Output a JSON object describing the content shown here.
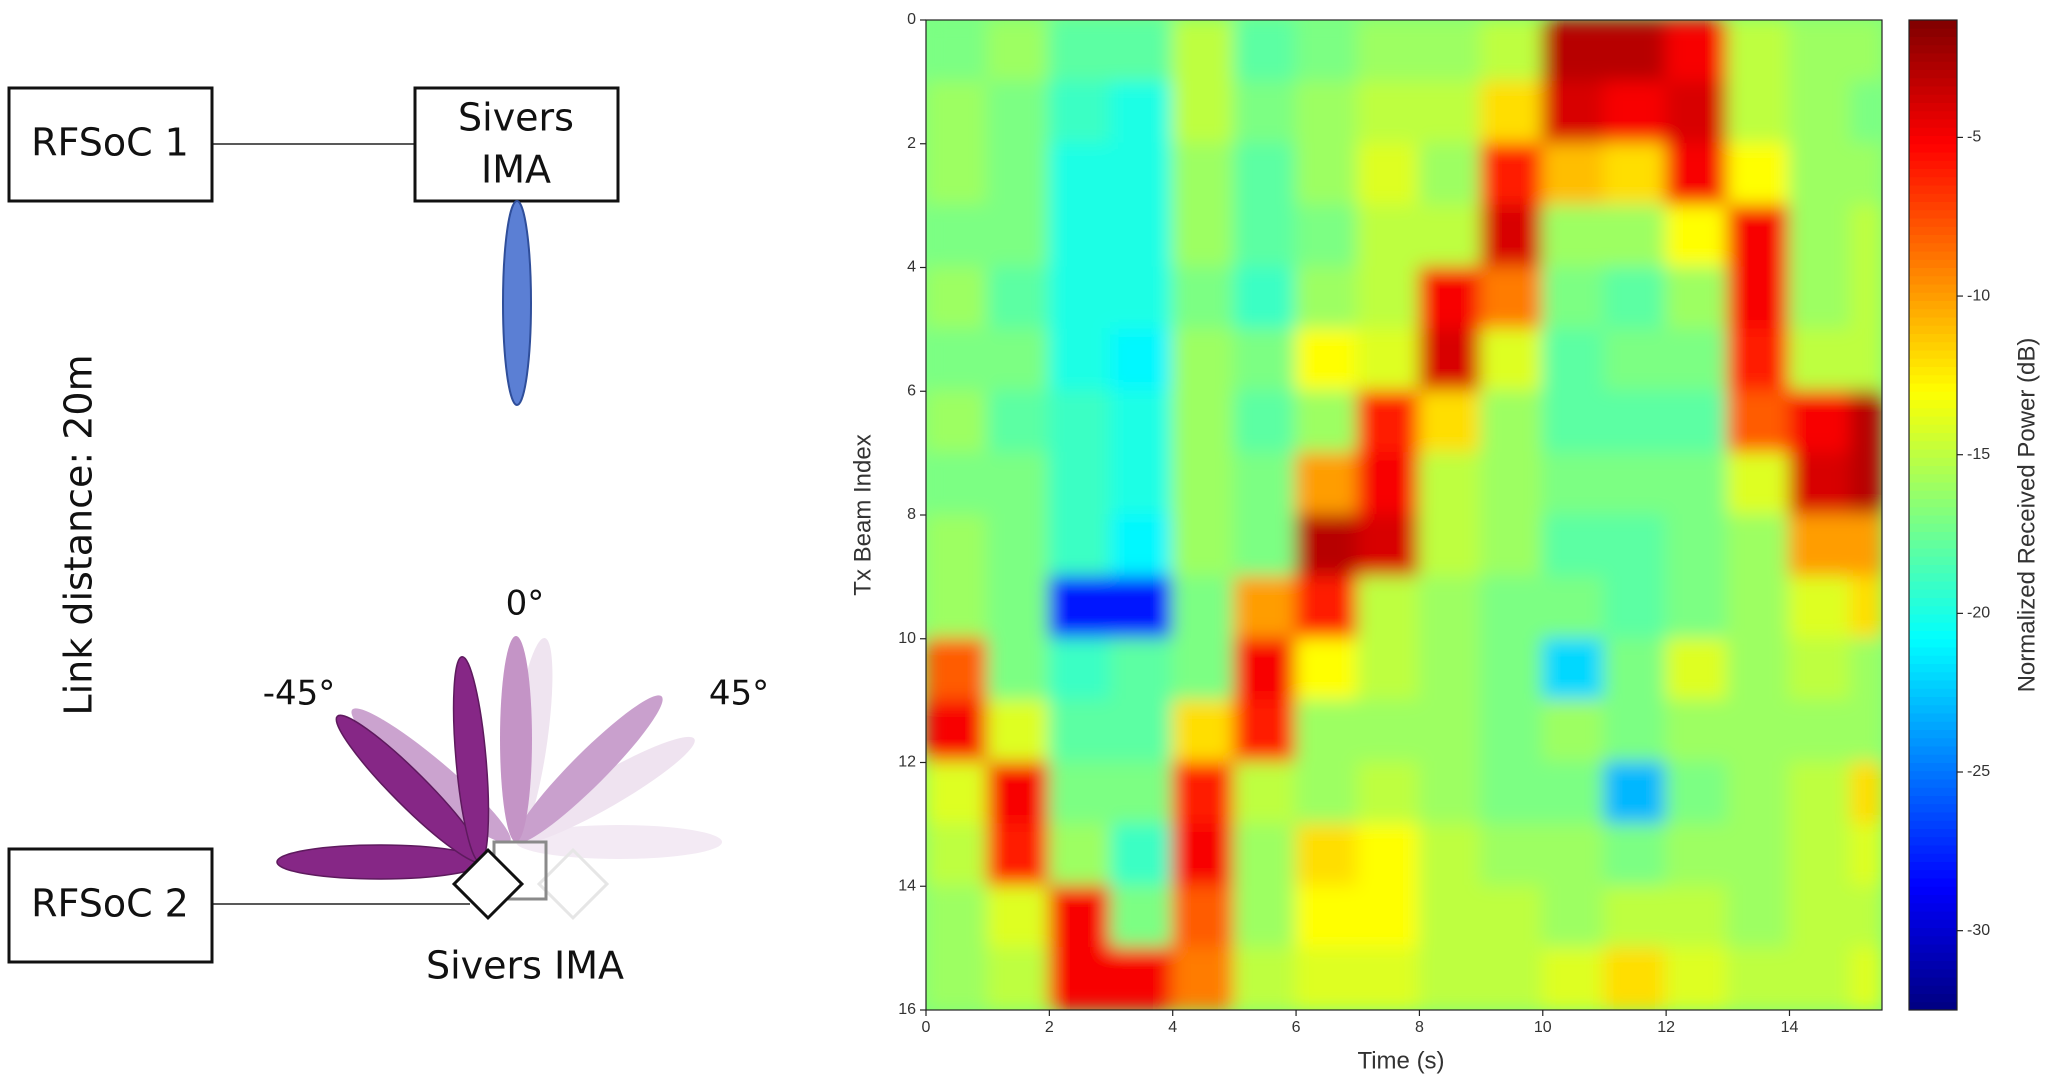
{
  "diagram": {
    "rfsoc1": "RFSoC 1",
    "sivers_top": [
      "Sivers",
      "IMA"
    ],
    "link_distance": "Link distance: 20m",
    "rfsoc2": "RFSoC 2",
    "sivers_bottom": "Sivers IMA",
    "angle_left": "-45°",
    "angle_center": "0°",
    "angle_right": "45°"
  },
  "chart_data": {
    "type": "heatmap",
    "x_label": "Time (s)",
    "y_label": "Tx Beam Index",
    "colorbar_label": "Normalized Received Power (dB)",
    "colormap": "jet",
    "x": [
      0,
      1,
      2,
      3,
      4,
      5,
      6,
      7,
      8,
      9,
      10,
      11,
      12,
      13,
      14,
      15
    ],
    "y": [
      0,
      1,
      2,
      3,
      4,
      5,
      6,
      7,
      8,
      9,
      10,
      11,
      12,
      13,
      14,
      15
    ],
    "xlim": [
      0,
      15.5
    ],
    "ylim": [
      16,
      0
    ],
    "zlim": [
      -32.5,
      -1.3
    ],
    "xticks": [
      0,
      2,
      4,
      6,
      8,
      10,
      12,
      14
    ],
    "yticks": [
      0,
      2,
      4,
      6,
      8,
      10,
      12,
      14,
      16
    ],
    "zticks": [
      -30,
      -25,
      -20,
      -15,
      -10,
      -5
    ],
    "z": [
      [
        -17,
        -16,
        -18,
        -18,
        -15,
        -18,
        -17,
        -16,
        -16,
        -15,
        -3,
        -3,
        -5,
        -15,
        -16,
        -16
      ],
      [
        -16,
        -17,
        -19,
        -20,
        -15,
        -17,
        -16,
        -15,
        -15,
        -12,
        -4,
        -5,
        -4,
        -15,
        -16,
        -17
      ],
      [
        -16,
        -17,
        -20,
        -20,
        -16,
        -18,
        -16,
        -14,
        -16,
        -6,
        -11,
        -12,
        -5,
        -13,
        -16,
        -16
      ],
      [
        -17,
        -17,
        -20,
        -20,
        -16,
        -18,
        -17,
        -15,
        -15,
        -4,
        -16,
        -16,
        -13,
        -5,
        -16,
        -15
      ],
      [
        -16,
        -18,
        -20,
        -20,
        -17,
        -19,
        -16,
        -15,
        -5,
        -9,
        -17,
        -18,
        -16,
        -5,
        -16,
        -15
      ],
      [
        -17,
        -17,
        -20,
        -21,
        -16,
        -17,
        -13,
        -14,
        -4,
        -14,
        -18,
        -17,
        -17,
        -6,
        -15,
        -15
      ],
      [
        -16,
        -18,
        -19,
        -20,
        -16,
        -18,
        -16,
        -6,
        -12,
        -16,
        -18,
        -18,
        -18,
        -8,
        -5,
        -3
      ],
      [
        -17,
        -17,
        -19,
        -20,
        -16,
        -17,
        -10,
        -5,
        -15,
        -16,
        -17,
        -17,
        -17,
        -14,
        -4,
        -3
      ],
      [
        -16,
        -17,
        -19,
        -21,
        -16,
        -17,
        -3,
        -4,
        -15,
        -16,
        -18,
        -18,
        -17,
        -16,
        -10,
        -10
      ],
      [
        -16,
        -17,
        -28,
        -28,
        -17,
        -10,
        -6,
        -15,
        -16,
        -17,
        -17,
        -18,
        -17,
        -16,
        -14,
        -12
      ],
      [
        -8,
        -17,
        -19,
        -18,
        -17,
        -5,
        -13,
        -15,
        -16,
        -17,
        -22,
        -17,
        -14,
        -16,
        -15,
        -16
      ],
      [
        -5,
        -14,
        -18,
        -18,
        -12,
        -6,
        -16,
        -16,
        -16,
        -17,
        -16,
        -17,
        -16,
        -16,
        -16,
        -16
      ],
      [
        -14,
        -5,
        -17,
        -17,
        -6,
        -15,
        -16,
        -15,
        -16,
        -17,
        -17,
        -23,
        -17,
        -16,
        -15,
        -12
      ],
      [
        -15,
        -6,
        -16,
        -19,
        -5,
        -16,
        -12,
        -13,
        -15,
        -16,
        -16,
        -17,
        -16,
        -16,
        -15,
        -14
      ],
      [
        -16,
        -14,
        -5,
        -17,
        -8,
        -16,
        -13,
        -13,
        -15,
        -15,
        -16,
        -15,
        -15,
        -16,
        -15,
        -15
      ],
      [
        -16,
        -15,
        -5,
        -5,
        -9,
        -15,
        -14,
        -14,
        -15,
        -15,
        -14,
        -12,
        -14,
        -15,
        -15,
        -14
      ]
    ]
  }
}
